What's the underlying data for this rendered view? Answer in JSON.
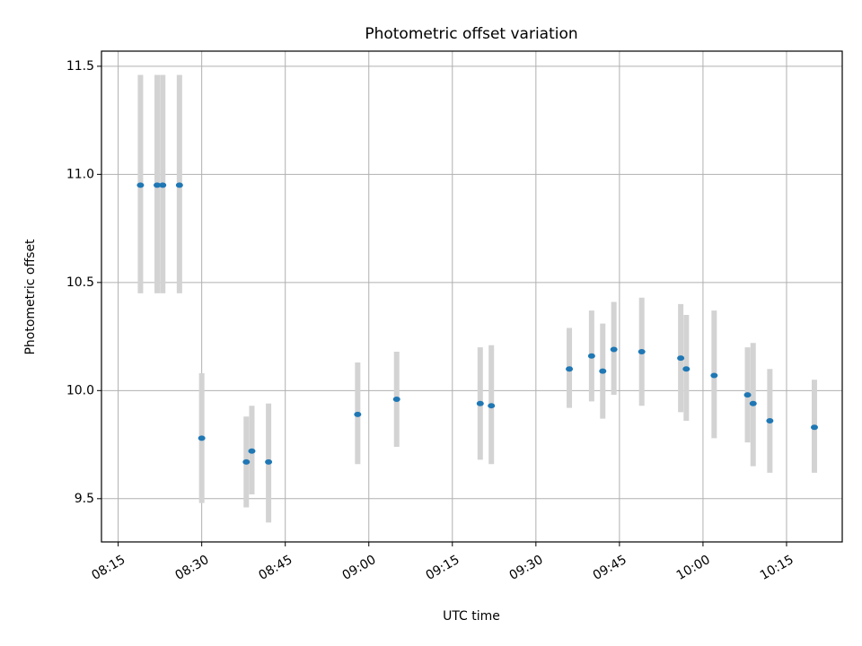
{
  "chart_data": {
    "type": "scatter",
    "title": "Photometric offset variation",
    "xlabel": "UTC time",
    "ylabel": "Photometric offset",
    "x_is_time": true,
    "xlim": [
      "08:12",
      "10:25"
    ],
    "ylim": [
      9.3,
      11.57
    ],
    "x_ticks": [
      "08:15",
      "08:30",
      "08:45",
      "09:00",
      "09:15",
      "09:30",
      "09:45",
      "10:00",
      "10:15"
    ],
    "y_ticks": [
      9.5,
      10.0,
      10.5,
      11.0,
      11.5
    ],
    "y_tick_labels": [
      "9.5",
      "10.0",
      "10.5",
      "11.0",
      "11.5"
    ],
    "grid": true,
    "series": [
      {
        "marker_color": "#1f77b4",
        "errorbar_color": "#d3d3d3",
        "points": [
          {
            "x": "08:19",
            "y": 10.95,
            "lo": 10.45,
            "hi": 11.46
          },
          {
            "x": "08:22",
            "y": 10.95,
            "lo": 10.45,
            "hi": 11.46
          },
          {
            "x": "08:23",
            "y": 10.95,
            "lo": 10.45,
            "hi": 11.46
          },
          {
            "x": "08:26",
            "y": 10.95,
            "lo": 10.45,
            "hi": 11.46
          },
          {
            "x": "08:30",
            "y": 9.78,
            "lo": 9.48,
            "hi": 10.08
          },
          {
            "x": "08:38",
            "y": 9.67,
            "lo": 9.46,
            "hi": 9.88
          },
          {
            "x": "08:39",
            "y": 9.72,
            "lo": 9.52,
            "hi": 9.93
          },
          {
            "x": "08:42",
            "y": 9.67,
            "lo": 9.39,
            "hi": 9.94
          },
          {
            "x": "08:58",
            "y": 9.89,
            "lo": 9.66,
            "hi": 10.13
          },
          {
            "x": "09:05",
            "y": 9.96,
            "lo": 9.74,
            "hi": 10.18
          },
          {
            "x": "09:20",
            "y": 9.94,
            "lo": 9.68,
            "hi": 10.2
          },
          {
            "x": "09:22",
            "y": 9.93,
            "lo": 9.66,
            "hi": 10.21
          },
          {
            "x": "09:36",
            "y": 10.1,
            "lo": 9.92,
            "hi": 10.29
          },
          {
            "x": "09:40",
            "y": 10.16,
            "lo": 9.95,
            "hi": 10.37
          },
          {
            "x": "09:42",
            "y": 10.09,
            "lo": 9.87,
            "hi": 10.31
          },
          {
            "x": "09:44",
            "y": 10.19,
            "lo": 9.98,
            "hi": 10.41
          },
          {
            "x": "09:49",
            "y": 10.18,
            "lo": 9.93,
            "hi": 10.43
          },
          {
            "x": "09:56",
            "y": 10.15,
            "lo": 9.9,
            "hi": 10.4
          },
          {
            "x": "09:57",
            "y": 10.1,
            "lo": 9.86,
            "hi": 10.35
          },
          {
            "x": "10:02",
            "y": 10.07,
            "lo": 9.78,
            "hi": 10.37
          },
          {
            "x": "10:08",
            "y": 9.98,
            "lo": 9.76,
            "hi": 10.2
          },
          {
            "x": "10:09",
            "y": 9.94,
            "lo": 9.65,
            "hi": 10.22
          },
          {
            "x": "10:12",
            "y": 9.86,
            "lo": 9.62,
            "hi": 10.1
          },
          {
            "x": "10:20",
            "y": 9.83,
            "lo": 9.62,
            "hi": 10.05
          }
        ]
      }
    ]
  }
}
